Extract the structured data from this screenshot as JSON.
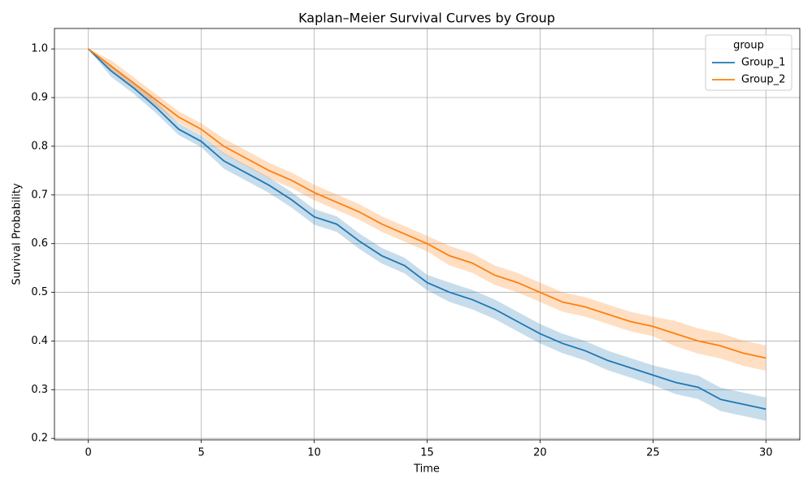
{
  "chart_data": {
    "type": "line",
    "title": "Kaplan–Meier Survival Curves by Group",
    "x_label": "Time",
    "y_label": "Survival Probability",
    "x": [
      0,
      1,
      2,
      3,
      4,
      5,
      6,
      7,
      8,
      9,
      10,
      11,
      12,
      13,
      14,
      15,
      16,
      17,
      18,
      19,
      20,
      21,
      22,
      23,
      24,
      25,
      26,
      27,
      28,
      29,
      30
    ],
    "series": [
      {
        "name": "Group_1",
        "color": "#1f77b4",
        "values": [
          1.0,
          0.955,
          0.92,
          0.88,
          0.835,
          0.81,
          0.77,
          0.745,
          0.72,
          0.69,
          0.655,
          0.64,
          0.605,
          0.575,
          0.555,
          0.52,
          0.5,
          0.485,
          0.465,
          0.44,
          0.415,
          0.395,
          0.38,
          0.36,
          0.345,
          0.33,
          0.315,
          0.305,
          0.28,
          0.27,
          0.26
        ],
        "ci_lower": [
          1.0,
          0.943,
          0.908,
          0.868,
          0.823,
          0.798,
          0.754,
          0.729,
          0.704,
          0.674,
          0.639,
          0.624,
          0.589,
          0.559,
          0.539,
          0.504,
          0.48,
          0.465,
          0.445,
          0.42,
          0.395,
          0.375,
          0.36,
          0.34,
          0.325,
          0.31,
          0.291,
          0.281,
          0.256,
          0.246,
          0.236
        ],
        "ci_upper": [
          1.0,
          0.967,
          0.932,
          0.892,
          0.847,
          0.822,
          0.786,
          0.761,
          0.736,
          0.706,
          0.671,
          0.656,
          0.621,
          0.591,
          0.571,
          0.536,
          0.52,
          0.505,
          0.485,
          0.46,
          0.435,
          0.415,
          0.4,
          0.38,
          0.365,
          0.35,
          0.339,
          0.329,
          0.304,
          0.294,
          0.284
        ]
      },
      {
        "name": "Group_2",
        "color": "#ff7f0e",
        "values": [
          1.0,
          0.965,
          0.93,
          0.895,
          0.86,
          0.835,
          0.8,
          0.775,
          0.75,
          0.73,
          0.705,
          0.685,
          0.665,
          0.64,
          0.62,
          0.6,
          0.575,
          0.56,
          0.535,
          0.52,
          0.5,
          0.48,
          0.47,
          0.455,
          0.44,
          0.43,
          0.415,
          0.4,
          0.39,
          0.375,
          0.365
        ],
        "ci_lower": [
          1.0,
          0.953,
          0.918,
          0.883,
          0.848,
          0.823,
          0.784,
          0.759,
          0.734,
          0.714,
          0.689,
          0.669,
          0.649,
          0.624,
          0.604,
          0.584,
          0.555,
          0.54,
          0.515,
          0.5,
          0.48,
          0.46,
          0.45,
          0.435,
          0.42,
          0.41,
          0.389,
          0.374,
          0.364,
          0.349,
          0.339
        ],
        "ci_upper": [
          1.0,
          0.977,
          0.942,
          0.907,
          0.872,
          0.847,
          0.816,
          0.791,
          0.766,
          0.746,
          0.721,
          0.701,
          0.681,
          0.656,
          0.636,
          0.616,
          0.595,
          0.58,
          0.555,
          0.54,
          0.52,
          0.5,
          0.49,
          0.475,
          0.46,
          0.45,
          0.441,
          0.426,
          0.416,
          0.401,
          0.391
        ]
      }
    ],
    "xlim": [
      -1.5,
      31.5
    ],
    "xticks": [
      0,
      5,
      10,
      15,
      20,
      25,
      30
    ],
    "ylim": [
      0.197,
      1.042
    ],
    "yticks": [
      0.2,
      0.3,
      0.4,
      0.5,
      0.6,
      0.7,
      0.8,
      0.9,
      {
        "value": 1.0,
        "label": "1.0"
      }
    ],
    "grid": true,
    "legend_title": "group",
    "legend_position": "upper right"
  }
}
